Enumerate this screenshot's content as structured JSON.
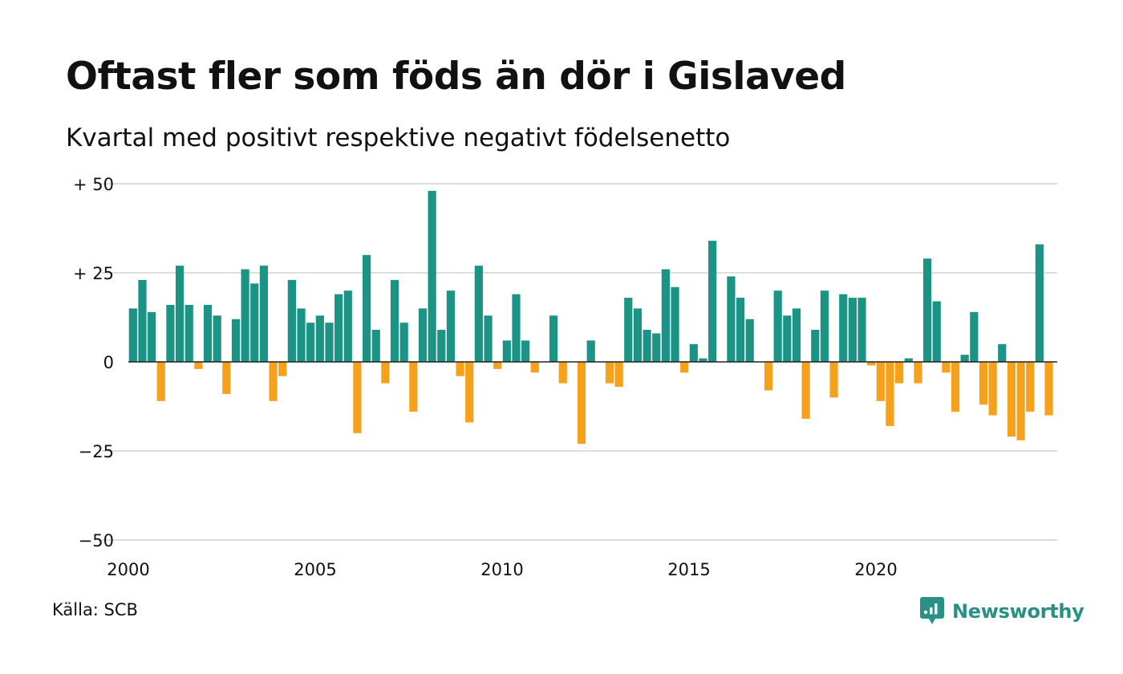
{
  "title": "Oftast fler som föds än dör i Gislaved",
  "subtitle": "Kvartal med positivt respektive negativt födelsenetto",
  "source": "Källa: SCB",
  "brand": "Newsworthy",
  "colors": {
    "positive": "#1b9485",
    "negative": "#f5a11c",
    "grid": "#dddddd",
    "zero_line": "#222222"
  },
  "chart_data": {
    "type": "bar",
    "title": "Oftast fler som föds än dör i Gislaved",
    "subtitle": "Kvartal med positivt respektive negativt födelsenetto",
    "x_start": "2000 Q1",
    "x_tick_labels": [
      "2000",
      "2005",
      "2010",
      "2015",
      "2020"
    ],
    "y_ticks": [
      50,
      25,
      0,
      -25,
      -50
    ],
    "y_tick_labels": [
      "+ 50",
      "+ 25",
      "0",
      "−25",
      "−50"
    ],
    "ylim": [
      -50,
      50
    ],
    "grid": true,
    "values": [
      15,
      23,
      14,
      -11,
      16,
      27,
      16,
      -2,
      16,
      13,
      -9,
      12,
      26,
      22,
      27,
      -11,
      -4,
      23,
      15,
      11,
      13,
      11,
      19,
      20,
      -20,
      30,
      9,
      -6,
      23,
      11,
      -14,
      15,
      48,
      9,
      20,
      -4,
      -17,
      27,
      13,
      -2,
      6,
      19,
      6,
      -3,
      0,
      13,
      -6,
      0,
      -23,
      6,
      0,
      -6,
      -7,
      18,
      15,
      9,
      8,
      26,
      21,
      -3,
      5,
      1,
      34,
      0,
      24,
      18,
      12,
      0,
      -8,
      20,
      13,
      15,
      -16,
      9,
      20,
      -10,
      19,
      18,
      18,
      -1,
      -11,
      -18,
      -6,
      1,
      -6,
      29,
      17,
      -3,
      -14,
      2,
      14,
      -12,
      -15,
      5,
      -21,
      -22,
      -14,
      33,
      -15
    ]
  }
}
